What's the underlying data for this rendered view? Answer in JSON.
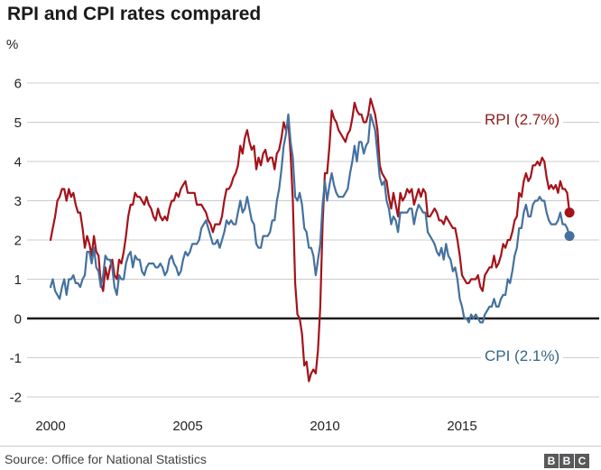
{
  "header": {
    "title": "RPI and CPI rates compared"
  },
  "chart": {
    "unit_label": "%"
  },
  "chart_data": {
    "type": "line",
    "title": "RPI and CPI rates compared",
    "xlabel": "",
    "ylabel": "%",
    "ylim": [
      -2,
      6
    ],
    "yticks": [
      6,
      5,
      4,
      3,
      2,
      1,
      0,
      -1,
      -2
    ],
    "xticks": [
      2000,
      2005,
      2010,
      2015
    ],
    "x_start_year": 2000,
    "x_step_months": 1,
    "grid": true,
    "legend_position": "inline-labels",
    "zero_line": true,
    "series": [
      {
        "name": "RPI",
        "label": "RPI (2.7%)",
        "color": "#a4121a",
        "label_color": "#8f1b1b",
        "end_value": 2.7,
        "values": [
          2.0,
          2.3,
          2.6,
          3.0,
          3.1,
          3.3,
          3.3,
          3.0,
          3.3,
          3.1,
          3.2,
          2.9,
          2.7,
          2.7,
          2.3,
          1.8,
          2.1,
          1.9,
          1.6,
          2.1,
          1.7,
          1.6,
          0.9,
          0.7,
          1.3,
          1.0,
          1.3,
          1.5,
          1.1,
          1.0,
          1.5,
          1.4,
          1.7,
          2.1,
          2.6,
          2.9,
          2.9,
          3.2,
          3.1,
          3.1,
          3.0,
          2.9,
          3.1,
          2.9,
          2.8,
          2.6,
          2.5,
          2.8,
          2.6,
          2.5,
          2.6,
          2.5,
          2.8,
          3.0,
          3.0,
          3.2,
          3.1,
          3.3,
          3.4,
          3.5,
          3.2,
          3.2,
          3.2,
          3.2,
          2.9,
          2.9,
          2.9,
          2.8,
          2.7,
          2.5,
          2.4,
          2.2,
          2.4,
          2.4,
          2.4,
          2.6,
          3.0,
          3.3,
          3.3,
          3.4,
          3.6,
          3.7,
          3.9,
          4.4,
          4.2,
          4.6,
          4.8,
          4.5,
          4.3,
          4.4,
          3.8,
          4.1,
          3.9,
          4.2,
          4.3,
          4.0,
          4.1,
          4.1,
          3.8,
          4.2,
          4.3,
          4.6,
          5.0,
          4.8,
          5.0,
          4.2,
          3.0,
          0.9,
          0.1,
          0.0,
          -0.4,
          -1.2,
          -1.1,
          -1.6,
          -1.4,
          -1.3,
          -1.4,
          -0.8,
          0.3,
          2.4,
          3.7,
          3.7,
          4.4,
          5.3,
          5.1,
          5.0,
          4.8,
          4.7,
          4.6,
          4.5,
          4.7,
          4.8,
          5.1,
          5.5,
          5.3,
          5.2,
          5.2,
          5.0,
          5.0,
          5.2,
          5.6,
          5.4,
          5.2,
          4.8,
          3.9,
          3.7,
          3.6,
          3.5,
          3.1,
          2.8,
          3.2,
          2.9,
          2.6,
          3.2,
          3.0,
          3.1,
          3.3,
          3.2,
          3.3,
          2.9,
          3.1,
          3.3,
          3.1,
          3.3,
          3.2,
          2.6,
          2.6,
          2.7,
          2.8,
          2.7,
          2.5,
          2.5,
          2.4,
          2.6,
          2.5,
          2.4,
          2.3,
          2.3,
          2.0,
          1.6,
          1.1,
          1.0,
          0.9,
          0.9,
          1.0,
          1.0,
          1.0,
          1.1,
          0.8,
          0.7,
          1.1,
          1.2,
          1.3,
          1.3,
          1.6,
          1.3,
          1.4,
          1.6,
          1.9,
          1.8,
          2.0,
          2.0,
          2.2,
          2.5,
          2.6,
          3.2,
          3.1,
          3.5,
          3.7,
          3.5,
          3.6,
          3.9,
          3.9,
          4.0,
          3.9,
          4.1,
          4.0,
          3.6,
          3.3,
          3.4,
          3.3,
          3.4,
          3.2,
          3.5,
          3.3,
          3.3,
          3.2,
          2.7
        ]
      },
      {
        "name": "CPI",
        "label": "CPI (2.1%)",
        "color": "#44719e",
        "label_color": "#336686",
        "end_value": 2.1,
        "values": [
          0.8,
          1.0,
          0.7,
          0.6,
          0.5,
          0.8,
          1.0,
          0.6,
          1.0,
          1.0,
          1.1,
          0.9,
          0.9,
          0.8,
          1.0,
          1.1,
          1.7,
          1.7,
          1.4,
          1.8,
          1.3,
          1.2,
          0.8,
          1.1,
          1.6,
          1.5,
          1.5,
          1.3,
          0.8,
          0.6,
          1.1,
          1.0,
          1.0,
          1.4,
          1.6,
          1.7,
          1.3,
          1.6,
          1.5,
          1.5,
          1.2,
          1.1,
          1.3,
          1.4,
          1.4,
          1.4,
          1.3,
          1.3,
          1.4,
          1.3,
          1.1,
          1.2,
          1.5,
          1.6,
          1.4,
          1.3,
          1.1,
          1.2,
          1.5,
          1.7,
          1.6,
          1.7,
          1.9,
          1.9,
          1.9,
          2.0,
          2.3,
          2.4,
          2.5,
          2.3,
          2.1,
          1.9,
          1.9,
          2.0,
          1.8,
          2.0,
          2.2,
          2.5,
          2.4,
          2.5,
          2.4,
          2.4,
          2.7,
          3.0,
          2.7,
          2.8,
          3.1,
          2.8,
          2.5,
          2.4,
          1.9,
          1.8,
          1.8,
          2.1,
          2.1,
          2.1,
          2.2,
          2.5,
          2.5,
          3.0,
          3.3,
          3.8,
          4.4,
          4.7,
          5.2,
          4.5,
          4.1,
          3.1,
          3.0,
          3.2,
          2.9,
          2.3,
          2.2,
          1.8,
          1.8,
          1.6,
          1.1,
          1.5,
          1.9,
          2.9,
          3.5,
          3.0,
          3.4,
          3.7,
          3.4,
          3.2,
          3.1,
          3.1,
          3.1,
          3.2,
          3.3,
          3.7,
          4.0,
          4.4,
          4.0,
          4.5,
          4.5,
          4.2,
          4.4,
          4.5,
          5.2,
          5.0,
          4.8,
          4.2,
          3.6,
          3.4,
          3.5,
          3.0,
          2.8,
          2.4,
          2.6,
          2.5,
          2.2,
          2.7,
          2.7,
          2.7,
          2.7,
          2.8,
          2.8,
          2.4,
          2.7,
          2.9,
          2.8,
          2.7,
          2.7,
          2.2,
          2.1,
          2.0,
          1.9,
          1.7,
          1.6,
          1.8,
          1.5,
          1.9,
          1.6,
          1.5,
          1.2,
          1.3,
          1.0,
          0.5,
          0.3,
          0.0,
          0.0,
          -0.1,
          0.1,
          0.0,
          0.1,
          0.0,
          -0.1,
          -0.1,
          0.1,
          0.2,
          0.3,
          0.3,
          0.5,
          0.3,
          0.3,
          0.5,
          0.6,
          0.6,
          1.0,
          0.9,
          1.2,
          1.6,
          1.8,
          2.3,
          2.3,
          2.7,
          2.9,
          2.6,
          2.6,
          2.9,
          3.0,
          3.0,
          3.1,
          3.0,
          3.0,
          2.7,
          2.5,
          2.4,
          2.4,
          2.4,
          2.5,
          2.7,
          2.4,
          2.4,
          2.3,
          2.1
        ]
      }
    ],
    "colors": {
      "grid": "#cccccc",
      "zero_line": "#1a1a1a",
      "tick_text": "#222222"
    }
  },
  "footer": {
    "source": "Source: Office for National Statistics",
    "logo_letters": [
      "B",
      "B",
      "C"
    ]
  }
}
